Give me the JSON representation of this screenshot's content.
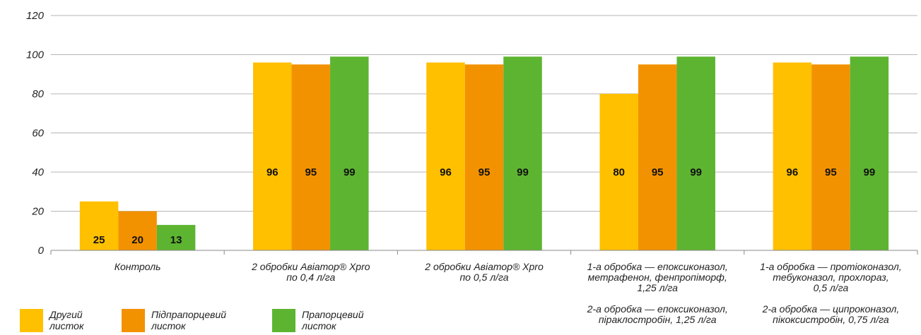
{
  "chart_data": {
    "type": "bar",
    "ylim": [
      0,
      120
    ],
    "yticks": [
      "0",
      "20",
      "40",
      "60",
      "80",
      "100",
      "120"
    ],
    "categories": [
      {
        "lines": [
          "Контроль"
        ]
      },
      {
        "lines": [
          "2 обробки Авіатор® Xpro",
          "по 0,4 л/га"
        ]
      },
      {
        "lines": [
          "2 обробки Авіатор® Xpro",
          "по 0,5 л/га"
        ]
      },
      {
        "lines": [
          "1-а обробка — епоксиконазол,",
          "метрафенон, фенпропіморф,",
          "1,25 л/га",
          "",
          "2-а обробка — епоксиконазол,",
          "піраклостробін, 1,25 л/га"
        ]
      },
      {
        "lines": [
          "1-а обробка — протіоконазол,",
          "тебуконазол, прохлораз,",
          "0,5 л/га",
          "",
          "2-а обробка — ципроконазол,",
          "пікоксистробін, 0,75 л/га"
        ]
      }
    ],
    "series": [
      {
        "name": "Другий листок",
        "color": "#FFC000",
        "values": [
          25,
          96,
          96,
          80,
          96
        ]
      },
      {
        "name": "Підпрапорцевий листок",
        "color": "#F39200",
        "values": [
          20,
          95,
          95,
          95,
          95
        ]
      },
      {
        "name": "Прапорцевий листок",
        "color": "#5DB431",
        "values": [
          13,
          99,
          99,
          99,
          99
        ]
      }
    ],
    "legend": [
      {
        "lines": [
          "Другий",
          "листок"
        ],
        "color": "#FFC000"
      },
      {
        "lines": [
          "Підпрапорцевий",
          "листок"
        ],
        "color": "#F39200"
      },
      {
        "lines": [
          "Прапорцевий",
          "листок"
        ],
        "color": "#5DB431"
      }
    ],
    "grid": true,
    "legend_position": "bottom-left"
  }
}
